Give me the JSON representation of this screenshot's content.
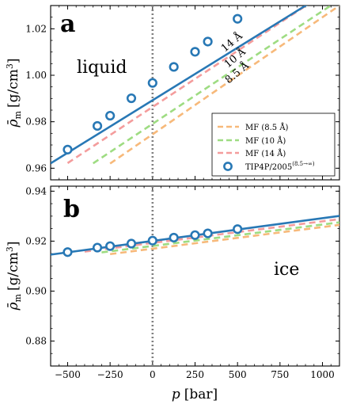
{
  "colors": {
    "tip4p": "#2878b5",
    "mf_85": "#f7b97a",
    "mf_10": "#9edc82",
    "mf_14": "#f49c9c",
    "zero_line": "#808080"
  },
  "x_tick_labels": [
    "−500",
    "−250",
    "0",
    "250",
    "500",
    "750",
    "1000"
  ],
  "x_tick_values": [
    -500,
    -250,
    0,
    250,
    500,
    750,
    1000
  ],
  "xlabel_sym": "p",
  "xlabel_unit": "[bar]",
  "ylabel_sym": "ρ̄",
  "ylabel_sub": "m",
  "ylabel_unit": "[g/cm",
  "ylabel_exp": "3",
  "ylabel_close": "]",
  "chart_data": [
    {
      "type": "line",
      "panel": "a",
      "phase_label": "liquid",
      "xlim": [
        -600,
        1100
      ],
      "ylim": [
        0.955,
        1.03
      ],
      "y_tick_values": [
        0.96,
        0.98,
        1.0,
        1.02
      ],
      "y_tick_labels": [
        "0.96",
        "0.98",
        "1.00",
        "1.02"
      ],
      "series_labels": [
        "14 Å",
        "10 Å",
        "8.5 Å"
      ],
      "legend": {
        "position": "lower right",
        "entries": [
          "MF (8.5 Å)",
          "MF (10 Å)",
          "MF (14 Å)",
          "TIP4P/2005"
        ],
        "superscript": "(8.5→∞)"
      },
      "series": [
        {
          "name": "MF (8.5 Å)",
          "x": [
            -250,
            1100
          ],
          "y": [
            0.962,
            1.03
          ],
          "style": "dashed",
          "color_key": "mf_85"
        },
        {
          "name": "MF (10 Å)",
          "x": [
            -350,
            1100
          ],
          "y": [
            0.9621,
            1.0325
          ],
          "style": "dashed",
          "color_key": "mf_10"
        },
        {
          "name": "MF (14 Å)",
          "x": [
            -500,
            1100
          ],
          "y": [
            0.9622,
            1.0395
          ],
          "style": "dashed",
          "color_key": "mf_14"
        },
        {
          "name": "TIP4P/2005",
          "x": [
            -600,
            1100
          ],
          "y": [
            0.9621,
            1.039
          ],
          "style": "solid",
          "color_key": "tip4p",
          "markers": {
            "x": [
              -500,
              -325,
              -250,
              -125,
              0,
              125,
              250,
              325,
              500
            ],
            "y": [
              0.968,
              0.9782,
              0.9826,
              0.9901,
              0.9967,
              1.0036,
              1.0101,
              1.0145,
              1.0243
            ]
          }
        }
      ]
    },
    {
      "type": "line",
      "panel": "b",
      "phase_label": "ice",
      "xlim": [
        -600,
        1100
      ],
      "ylim": [
        0.87,
        0.942
      ],
      "y_tick_values": [
        0.88,
        0.9,
        0.92,
        0.94
      ],
      "y_tick_labels": [
        "0.88",
        "0.90",
        "0.92",
        "0.94"
      ],
      "series": [
        {
          "name": "MF (8.5 Å)",
          "x": [
            -250,
            1100
          ],
          "y": [
            0.9148,
            0.9265
          ],
          "style": "dashed",
          "color_key": "mf_85"
        },
        {
          "name": "MF (10 Å)",
          "x": [
            -300,
            1100
          ],
          "y": [
            0.9155,
            0.9275
          ],
          "style": "dashed",
          "color_key": "mf_10"
        },
        {
          "name": "MF (14 Å)",
          "x": [
            -400,
            1100
          ],
          "y": [
            0.9158,
            0.9288
          ],
          "style": "dashed",
          "color_key": "mf_14"
        },
        {
          "name": "TIP4P/2005",
          "x": [
            -600,
            1100
          ],
          "y": [
            0.9146,
            0.9301
          ],
          "style": "solid",
          "color_key": "tip4p",
          "markers": {
            "x": [
              -500,
              -325,
              -250,
              -125,
              0,
              125,
              250,
              325,
              500
            ],
            "y": [
              0.9156,
              0.9174,
              0.918,
              0.919,
              0.9202,
              0.9214,
              0.9224,
              0.9231,
              0.9248
            ]
          }
        }
      ]
    }
  ]
}
